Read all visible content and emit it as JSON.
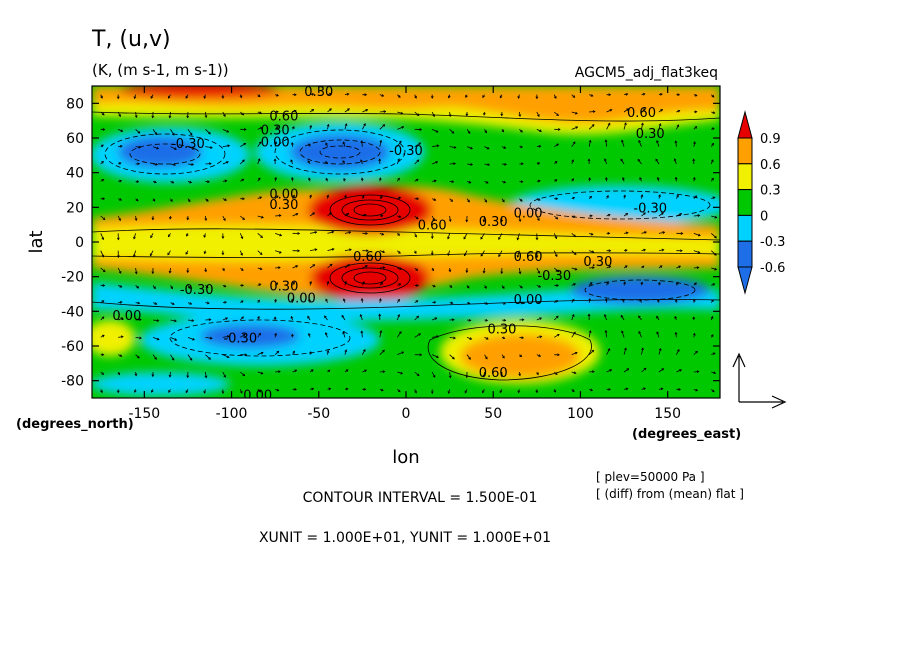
{
  "header": {
    "title": "T, (u,v)",
    "units": "(K, (m s-1, m s-1))",
    "experiment": "AGCM5_adj_flat3keq"
  },
  "chart_data": {
    "type": "heatmap",
    "subtype": "filled contour with wind vectors",
    "xlabel": "lon",
    "ylabel": "lat",
    "x_unit_label": "(degrees_east)",
    "y_unit_label": "(degrees_north)",
    "xlim": [
      -180,
      180
    ],
    "ylim": [
      -90,
      90
    ],
    "x_ticks": [
      -150,
      -100,
      -50,
      0,
      50,
      100,
      150
    ],
    "y_ticks": [
      -80,
      -60,
      -40,
      -20,
      0,
      20,
      40,
      60,
      80
    ],
    "colorbar": {
      "levels": [
        -0.6,
        -0.3,
        0,
        0.3,
        0.6,
        0.9
      ],
      "labels": [
        "-0.6",
        "-0.3",
        "0",
        "0.3",
        "0.6",
        "0.9"
      ],
      "colors": [
        "#1e6ee8",
        "#00d2ff",
        "#00c800",
        "#f0f000",
        "#ffa000",
        "#e60000"
      ],
      "extend": "both"
    },
    "contour_labels": [
      {
        "text": "0.30",
        "lon": -50,
        "lat": 87
      },
      {
        "text": "0.60",
        "lon": -70,
        "lat": 73
      },
      {
        "text": "0.30",
        "lon": -75,
        "lat": 65
      },
      {
        "text": "0.00",
        "lon": -75,
        "lat": 58
      },
      {
        "text": "-0.30",
        "lon": -125,
        "lat": 57
      },
      {
        "text": "-0.30",
        "lon": 0,
        "lat": 53
      },
      {
        "text": "0.60",
        "lon": 135,
        "lat": 75
      },
      {
        "text": "0.30",
        "lon": 140,
        "lat": 63
      },
      {
        "text": "0.00",
        "lon": -70,
        "lat": 28
      },
      {
        "text": "0.30",
        "lon": -70,
        "lat": 22
      },
      {
        "text": "0.60",
        "lon": 15,
        "lat": 10
      },
      {
        "text": "0.30",
        "lon": 50,
        "lat": 12
      },
      {
        "text": "0.00",
        "lon": 70,
        "lat": 17
      },
      {
        "text": "-0.30",
        "lon": 140,
        "lat": 20
      },
      {
        "text": "0.60",
        "lon": -22,
        "lat": -8
      },
      {
        "text": "0.60",
        "lon": 70,
        "lat": -8
      },
      {
        "text": "0.30",
        "lon": 110,
        "lat": -11
      },
      {
        "text": "-0.30",
        "lon": 85,
        "lat": -19
      },
      {
        "text": "0.30",
        "lon": -70,
        "lat": -25
      },
      {
        "text": "0.00",
        "lon": -60,
        "lat": -32
      },
      {
        "text": "-0.30",
        "lon": -120,
        "lat": -27
      },
      {
        "text": "0.00",
        "lon": 70,
        "lat": -33
      },
      {
        "text": "0.00",
        "lon": -160,
        "lat": -42
      },
      {
        "text": "0.30",
        "lon": 55,
        "lat": -50
      },
      {
        "text": "-0.30",
        "lon": -95,
        "lat": -55
      },
      {
        "text": "0.60",
        "lon": 50,
        "lat": -75
      },
      {
        "text": "0.00",
        "lon": -85,
        "lat": -88
      }
    ],
    "vector_reference": {
      "show": true
    }
  },
  "footer": {
    "contour_interval": "CONTOUR INTERVAL = 1.500E-01",
    "units_line": "XUNIT = 1.000E+01, YUNIT = 1.000E+01",
    "plev": "[ plev=50000 Pa ]",
    "diff_note": "[ (diff) from (mean) flat ]"
  }
}
